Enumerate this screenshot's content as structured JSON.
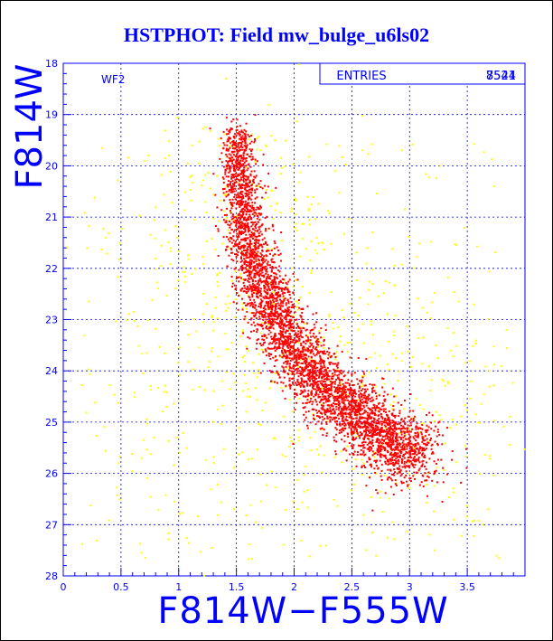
{
  "title": "HSTPHOT: Field mw_bulge_u6ls02",
  "colors": {
    "axis": "#0000ff",
    "text": "#0000ff",
    "grid": "#0000ff",
    "points_a": "#ff0000",
    "points_b": "#ffff00"
  },
  "stats_box": {
    "label": "ENTRIES",
    "values": [
      "8541",
      "7524"
    ]
  },
  "chart_data": {
    "type": "scatter",
    "title": "HSTPHOT: Field mw_bulge_u6ls02",
    "panel_label": "WF2",
    "xlabel": "F814W−F555W",
    "ylabel": "F814W",
    "xlim": [
      0,
      4
    ],
    "ylim": [
      28,
      18
    ],
    "y_inverted": true,
    "grid": true,
    "x_ticks": [
      0,
      0.5,
      1,
      1.5,
      2,
      2.5,
      3,
      3.5
    ],
    "x_tick_labels": [
      "0",
      "0.5",
      "1",
      "1.5",
      "2",
      "2.5",
      "3",
      "3.5"
    ],
    "y_ticks": [
      18,
      19,
      20,
      21,
      22,
      23,
      24,
      25,
      26,
      27,
      28
    ],
    "y_tick_labels": [
      "18",
      "19",
      "20",
      "21",
      "22",
      "23",
      "24",
      "25",
      "26",
      "27",
      "28"
    ],
    "series": [
      {
        "entries": 8541,
        "color": "#ff0000",
        "ridge": [
          [
            1.5,
            19.3
          ],
          [
            1.52,
            20.0
          ],
          [
            1.55,
            20.8
          ],
          [
            1.6,
            21.5
          ],
          [
            1.7,
            22.2
          ],
          [
            1.8,
            22.8
          ],
          [
            1.95,
            23.4
          ],
          [
            2.1,
            23.9
          ],
          [
            2.3,
            24.4
          ],
          [
            2.5,
            24.8
          ],
          [
            2.7,
            25.1
          ],
          [
            2.9,
            25.5
          ],
          [
            3.05,
            25.7
          ]
        ],
        "spread_color": 0.08,
        "spread_mag": 0.3
      },
      {
        "entries": 7524,
        "color": "#ffff00",
        "ridge": [
          [
            1.5,
            19.3
          ],
          [
            1.55,
            20.6
          ],
          [
            1.65,
            21.8
          ],
          [
            1.85,
            22.9
          ],
          [
            2.1,
            23.8
          ],
          [
            2.45,
            24.7
          ],
          [
            2.8,
            25.3
          ],
          [
            3.05,
            25.7
          ]
        ],
        "spread_color": 0.45,
        "spread_mag": 0.9
      }
    ]
  }
}
